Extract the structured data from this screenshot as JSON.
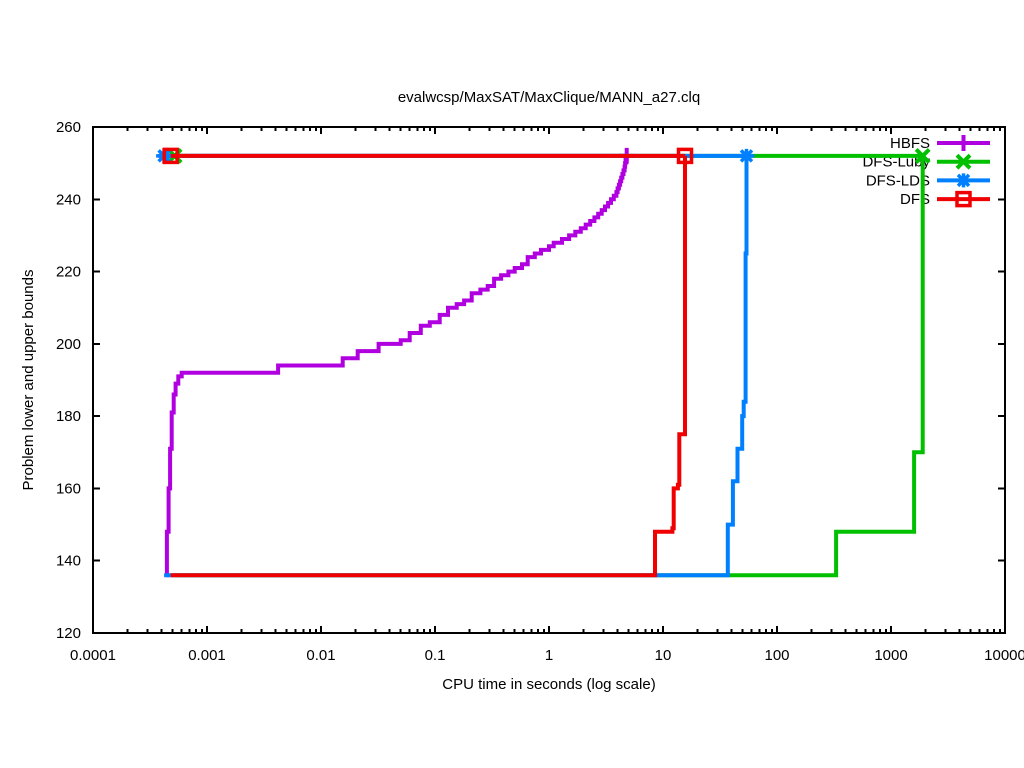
{
  "page": {
    "background": "#ffffff"
  },
  "chart_data": {
    "type": "line",
    "title": "evalwcsp/MaxSAT/MaxClique/MANN_a27.clq",
    "xlabel": "CPU time in seconds (log scale)",
    "ylabel": "Problem lower and upper bounds",
    "x_scale": "log",
    "xlim": [
      0.0001,
      10000
    ],
    "ylim": [
      120,
      260
    ],
    "x_ticks": [
      "0.0001",
      "0.001",
      "0.01",
      "0.1",
      "1",
      "10",
      "100",
      "1000",
      "10000"
    ],
    "y_ticks": [
      120,
      140,
      160,
      180,
      200,
      220,
      240,
      260
    ],
    "grid": false,
    "legend_position": "top-right-inside",
    "optimum_value": 252,
    "initial_lower_bound": 136,
    "series": [
      {
        "name": "HBFS",
        "color": "#b000e0",
        "marker": "plus",
        "start_t": 0.00044,
        "solved_t": 4.8,
        "upper_bound": 252,
        "lower_bound_steps": [
          [
            0.00044,
            136
          ],
          [
            0.000445,
            148
          ],
          [
            0.00046,
            160
          ],
          [
            0.000475,
            171
          ],
          [
            0.00049,
            181
          ],
          [
            0.00051,
            186
          ],
          [
            0.00053,
            189
          ],
          [
            0.00056,
            191
          ],
          [
            0.0006,
            192
          ],
          [
            0.0042,
            194
          ],
          [
            0.0155,
            196
          ],
          [
            0.021,
            198
          ],
          [
            0.032,
            200
          ],
          [
            0.05,
            201
          ],
          [
            0.06,
            203
          ],
          [
            0.075,
            205
          ],
          [
            0.09,
            206
          ],
          [
            0.11,
            208
          ],
          [
            0.13,
            210
          ],
          [
            0.155,
            211
          ],
          [
            0.18,
            212
          ],
          [
            0.21,
            214
          ],
          [
            0.25,
            215
          ],
          [
            0.29,
            216
          ],
          [
            0.33,
            218
          ],
          [
            0.38,
            219
          ],
          [
            0.44,
            220
          ],
          [
            0.5,
            221
          ],
          [
            0.58,
            222
          ],
          [
            0.65,
            224
          ],
          [
            0.75,
            225
          ],
          [
            0.85,
            226
          ],
          [
            1.0,
            227
          ],
          [
            1.1,
            228
          ],
          [
            1.3,
            229
          ],
          [
            1.5,
            230
          ],
          [
            1.7,
            231
          ],
          [
            1.9,
            232
          ],
          [
            2.1,
            233
          ],
          [
            2.3,
            234
          ],
          [
            2.5,
            235
          ],
          [
            2.7,
            236
          ],
          [
            2.9,
            237
          ],
          [
            3.1,
            238
          ],
          [
            3.3,
            239
          ],
          [
            3.5,
            240
          ],
          [
            3.7,
            241
          ],
          [
            3.9,
            242
          ],
          [
            4.0,
            243
          ],
          [
            4.1,
            244
          ],
          [
            4.2,
            245
          ],
          [
            4.3,
            246
          ],
          [
            4.4,
            247
          ],
          [
            4.5,
            248
          ],
          [
            4.6,
            249
          ],
          [
            4.65,
            250
          ],
          [
            4.7,
            251
          ],
          [
            4.8,
            252
          ]
        ]
      },
      {
        "name": "DFS-Luby",
        "color": "#00c000",
        "marker": "cross",
        "start_t": 0.00052,
        "solved_t": 1897,
        "upper_bound": 252,
        "lower_bound_steps": [
          [
            0.00052,
            136
          ],
          [
            330,
            148
          ],
          [
            1593,
            170
          ],
          [
            1897,
            252
          ]
        ]
      },
      {
        "name": "DFS-LDS",
        "color": "#0080ff",
        "marker": "asterisk",
        "start_t": 0.00042,
        "solved_t": 54,
        "upper_bound": 252,
        "lower_bound_steps": [
          [
            0.00042,
            136
          ],
          [
            37,
            150
          ],
          [
            41,
            162
          ],
          [
            45,
            171
          ],
          [
            49.5,
            180
          ],
          [
            51,
            184
          ],
          [
            53,
            225
          ],
          [
            54,
            252
          ]
        ]
      },
      {
        "name": "DFS",
        "color": "#f00000",
        "marker": "open-square",
        "start_t": 0.00048,
        "solved_t": 15.6,
        "upper_bound": 252,
        "lower_bound_steps": [
          [
            0.00048,
            136
          ],
          [
            8.5,
            148
          ],
          [
            12.1,
            149
          ],
          [
            12.4,
            160
          ],
          [
            13.5,
            161
          ],
          [
            13.9,
            175
          ],
          [
            15.6,
            252
          ]
        ]
      }
    ]
  }
}
